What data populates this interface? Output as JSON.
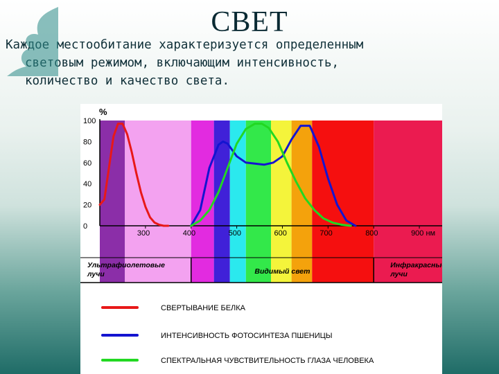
{
  "slide": {
    "title": "СВЕТ",
    "text_lines": [
      "Каждое местообитание характеризуется определенным",
      "световым режимом, включающим интенсивность,",
      "количество и качество света."
    ]
  },
  "chart_data": {
    "type": "line",
    "xlabel": "",
    "ylabel": "%",
    "ylim": [
      0,
      100
    ],
    "xlim": [
      200,
      950
    ],
    "y_ticks": [
      "0",
      "20",
      "40",
      "60",
      "80",
      "100"
    ],
    "x_ticks": [
      "300",
      "400",
      "500",
      "600",
      "700",
      "800",
      "900 нм"
    ],
    "region_labels": {
      "uv": "Ультрафиолетовые лучи",
      "visible": "Видимый свет",
      "ir": "Инфракрасные лучи"
    },
    "bands": [
      {
        "from": 200,
        "to": 255,
        "color": "#8b2ea8"
      },
      {
        "from": 255,
        "to": 400,
        "color": "#f3a2f0"
      },
      {
        "from": 400,
        "to": 450,
        "color": "#e22be0"
      },
      {
        "from": 450,
        "to": 485,
        "color": "#4021d8"
      },
      {
        "from": 485,
        "to": 520,
        "color": "#2be9ee"
      },
      {
        "from": 520,
        "to": 575,
        "color": "#33e84a"
      },
      {
        "from": 575,
        "to": 620,
        "color": "#f4f43b"
      },
      {
        "from": 620,
        "to": 665,
        "color": "#f4a20c"
      },
      {
        "from": 665,
        "to": 800,
        "color": "#f50f0f"
      },
      {
        "from": 800,
        "to": 950,
        "color": "#eb1b50"
      }
    ],
    "series": [
      {
        "name": "СВЕРТЫВАНИЕ БЕЛКА",
        "color": "#e81818",
        "x": [
          200,
          210,
          220,
          230,
          240,
          250,
          260,
          270,
          280,
          290,
          300,
          310,
          320,
          330,
          340,
          350
        ],
        "y": [
          20,
          25,
          55,
          85,
          97,
          97,
          87,
          70,
          50,
          32,
          18,
          8,
          3,
          1,
          0,
          0
        ]
      },
      {
        "name": "ИНТЕНСИВНОСТЬ ФОТОСИНТЕЗА ПШЕНИЦЫ",
        "color": "#1414d0",
        "x": [
          400,
          420,
          440,
          460,
          470,
          480,
          500,
          520,
          540,
          560,
          580,
          600,
          620,
          640,
          660,
          680,
          700,
          720,
          740,
          760
        ],
        "y": [
          0,
          15,
          55,
          77,
          80,
          78,
          66,
          60,
          59,
          58,
          60,
          66,
          82,
          95,
          95,
          75,
          45,
          20,
          5,
          0
        ]
      },
      {
        "name": "СПЕКТРАЛЬНАЯ ЧУВСТВИТЕЛЬНОСТЬ ГЛАЗА ЧЕЛОВЕКА",
        "color": "#22d822",
        "x": [
          400,
          420,
          440,
          460,
          480,
          500,
          520,
          540,
          555,
          570,
          590,
          610,
          630,
          650,
          670,
          690,
          710,
          730,
          750
        ],
        "y": [
          0,
          5,
          15,
          32,
          55,
          78,
          92,
          97,
          97,
          93,
          80,
          60,
          42,
          26,
          15,
          7,
          3,
          1,
          0
        ]
      }
    ]
  },
  "decor": {
    "accent": "#2a8a86"
  }
}
